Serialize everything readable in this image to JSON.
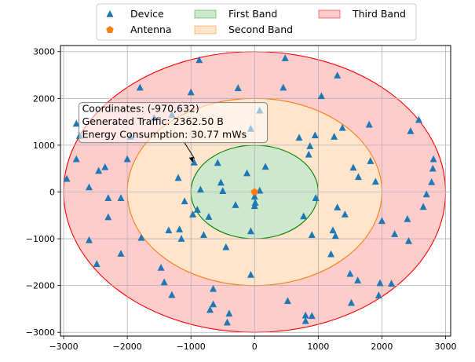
{
  "chart_data": {
    "type": "scatter",
    "title": "",
    "xlabel": "",
    "ylabel": "",
    "xlim": [
      -3050,
      3080
    ],
    "ylim": [
      -3080,
      3130
    ],
    "xticks": [
      -3000,
      -2000,
      -1000,
      0,
      1000,
      2000,
      3000
    ],
    "yticks": [
      -3000,
      -2000,
      -1000,
      0,
      1000,
      2000,
      3000
    ],
    "grid": true,
    "legend": {
      "placement": "top-center-outside",
      "entries": [
        {
          "label": "Device",
          "marker": "triangle",
          "color": "#1f77b4"
        },
        {
          "label": "Antenna",
          "marker": "pentagon",
          "color": "#ff7f0e"
        },
        {
          "label": "First Band",
          "marker": "patch",
          "color": "#2ca02c"
        },
        {
          "label": "Second Band",
          "marker": "patch",
          "color": "#ff7f0e"
        },
        {
          "label": "Third Band",
          "marker": "patch",
          "color": "#ff0000"
        }
      ]
    },
    "bands": [
      {
        "name": "Third Band",
        "rx": 3000,
        "ry": 3000,
        "fill": "#ffcccc",
        "edge": "#ff0000"
      },
      {
        "name": "Second Band",
        "rx": 2000,
        "ry": 2000,
        "fill": "#ffe5cc",
        "edge": "#ff7f0e"
      },
      {
        "name": "First Band",
        "rx": 1000,
        "ry": 1000,
        "fill": "#cde8cd",
        "edge": "#008000"
      }
    ],
    "antenna": {
      "x": 0,
      "y": 0
    },
    "devices": [
      {
        "x": -2950,
        "y": 280
      },
      {
        "x": -2800,
        "y": 700
      },
      {
        "x": -2600,
        "y": 100
      },
      {
        "x": -2450,
        "y": 450
      },
      {
        "x": -2350,
        "y": 530
      },
      {
        "x": -2300,
        "y": -130
      },
      {
        "x": -2300,
        "y": -540
      },
      {
        "x": -2100,
        "y": -130
      },
      {
        "x": -2100,
        "y": -1320
      },
      {
        "x": -2000,
        "y": 700
      },
      {
        "x": -1950,
        "y": 1180
      },
      {
        "x": -1800,
        "y": 2230
      },
      {
        "x": -1780,
        "y": -980
      },
      {
        "x": -2600,
        "y": -1030
      },
      {
        "x": -2480,
        "y": -1540
      },
      {
        "x": -1470,
        "y": -1620
      },
      {
        "x": -1420,
        "y": -1930
      },
      {
        "x": -1300,
        "y": -2200
      },
      {
        "x": -1350,
        "y": -820
      },
      {
        "x": -1200,
        "y": 300
      },
      {
        "x": -1180,
        "y": -800
      },
      {
        "x": -1150,
        "y": -1000
      },
      {
        "x": -1100,
        "y": -200
      },
      {
        "x": -1000,
        "y": 2130
      },
      {
        "x": -970,
        "y": -480
      },
      {
        "x": -950,
        "y": 630
      },
      {
        "x": -900,
        "y": -380
      },
      {
        "x": -870,
        "y": 2820
      },
      {
        "x": -850,
        "y": 50
      },
      {
        "x": -800,
        "y": -920
      },
      {
        "x": -700,
        "y": -2520
      },
      {
        "x": -650,
        "y": -2400
      },
      {
        "x": -650,
        "y": -2070
      },
      {
        "x": -720,
        "y": -530
      },
      {
        "x": -580,
        "y": 620
      },
      {
        "x": -530,
        "y": 200
      },
      {
        "x": -500,
        "y": 20
      },
      {
        "x": -450,
        "y": -1180
      },
      {
        "x": -430,
        "y": -2790
      },
      {
        "x": -400,
        "y": -2600
      },
      {
        "x": -300,
        "y": -280
      },
      {
        "x": -260,
        "y": 2220
      },
      {
        "x": -120,
        "y": 400
      },
      {
        "x": -60,
        "y": 1350
      },
      {
        "x": -60,
        "y": -840
      },
      {
        "x": -60,
        "y": -1770
      },
      {
        "x": 0,
        "y": -100
      },
      {
        "x": 0,
        "y": -300
      },
      {
        "x": 10,
        "y": -230
      },
      {
        "x": 80,
        "y": 1740
      },
      {
        "x": 80,
        "y": 30
      },
      {
        "x": 170,
        "y": 540
      },
      {
        "x": -1300,
        "y": 1650
      },
      {
        "x": -1580,
        "y": 1580
      },
      {
        "x": -2800,
        "y": 1460
      },
      {
        "x": -2750,
        "y": 1200
      },
      {
        "x": 450,
        "y": 2230
      },
      {
        "x": 480,
        "y": 2860
      },
      {
        "x": 520,
        "y": -2330
      },
      {
        "x": 700,
        "y": 1160
      },
      {
        "x": 770,
        "y": -520
      },
      {
        "x": 800,
        "y": -2640
      },
      {
        "x": 800,
        "y": -2760
      },
      {
        "x": 850,
        "y": 800
      },
      {
        "x": 870,
        "y": 980
      },
      {
        "x": 900,
        "y": -2650
      },
      {
        "x": 900,
        "y": -920
      },
      {
        "x": 950,
        "y": 1210
      },
      {
        "x": 960,
        "y": -130
      },
      {
        "x": 1050,
        "y": 2050
      },
      {
        "x": 1200,
        "y": -1330
      },
      {
        "x": 1230,
        "y": -820
      },
      {
        "x": 1250,
        "y": 1180
      },
      {
        "x": 1270,
        "y": -940
      },
      {
        "x": 1300,
        "y": 2490
      },
      {
        "x": 1300,
        "y": -330
      },
      {
        "x": 1380,
        "y": 1370
      },
      {
        "x": 1420,
        "y": -480
      },
      {
        "x": 1500,
        "y": -1750
      },
      {
        "x": 1520,
        "y": -2370
      },
      {
        "x": 1550,
        "y": 520
      },
      {
        "x": 1620,
        "y": -1890
      },
      {
        "x": 1630,
        "y": 320
      },
      {
        "x": 1800,
        "y": 1440
      },
      {
        "x": 1820,
        "y": 660
      },
      {
        "x": 1900,
        "y": 220
      },
      {
        "x": 1950,
        "y": -2210
      },
      {
        "x": 1970,
        "y": -1950
      },
      {
        "x": 2000,
        "y": -620
      },
      {
        "x": 2150,
        "y": -1960
      },
      {
        "x": 2200,
        "y": -900
      },
      {
        "x": 2420,
        "y": -1050
      },
      {
        "x": 2450,
        "y": 1300
      },
      {
        "x": 2400,
        "y": -580
      },
      {
        "x": 2580,
        "y": 1540
      },
      {
        "x": 2650,
        "y": -320
      },
      {
        "x": 2700,
        "y": -50
      },
      {
        "x": 2780,
        "y": 210
      },
      {
        "x": 2800,
        "y": 500
      },
      {
        "x": 2810,
        "y": 700
      }
    ],
    "annotation": {
      "lines": [
        "Coordinates: (-970,632)",
        "Generated Traffic: 2362.50 B",
        "Energy Consumption: 30.77 mWs"
      ],
      "point": {
        "x": -970,
        "y": 632
      },
      "text_anchor": {
        "x": -2710,
        "y": 1710
      }
    }
  }
}
